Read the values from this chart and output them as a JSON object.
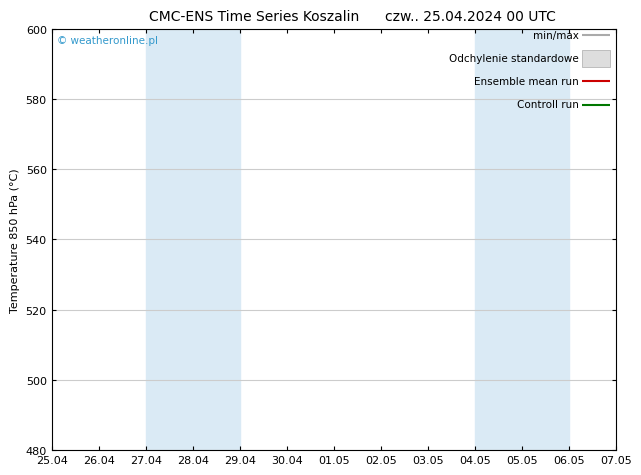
{
  "title": "CMC-ENS Time Series Koszalin",
  "title_right": "czw.. 25.04.2024 00 UTC",
  "ylabel": "Temperature 850 hPa (°C)",
  "xlim_dates": [
    "25.04",
    "26.04",
    "27.04",
    "28.04",
    "29.04",
    "30.04",
    "01.05",
    "02.05",
    "03.05",
    "04.05",
    "05.05",
    "06.05",
    "07.05"
  ],
  "ylim": [
    480,
    600
  ],
  "yticks": [
    480,
    500,
    520,
    540,
    560,
    580,
    600
  ],
  "shaded_regions": [
    {
      "xstart": 2.0,
      "xend": 4.0
    },
    {
      "xstart": 9.0,
      "xend": 11.0
    }
  ],
  "shaded_color": "#daeaf5",
  "watermark": "© weatheronline.pl",
  "watermark_color": "#3399cc",
  "legend_entries": [
    "min/max",
    "Odchylenie standardowe",
    "Ensemble mean run",
    "Controll run"
  ],
  "legend_line_colors": [
    "#aaaaaa",
    "#cccccc",
    "#cc0000",
    "#007700"
  ],
  "background_color": "#ffffff",
  "plot_bg_color": "#ffffff",
  "grid_color": "#cccccc",
  "axis_color": "#000000",
  "title_fontsize": 10,
  "label_fontsize": 8,
  "tick_fontsize": 8,
  "legend_fontsize": 7.5
}
